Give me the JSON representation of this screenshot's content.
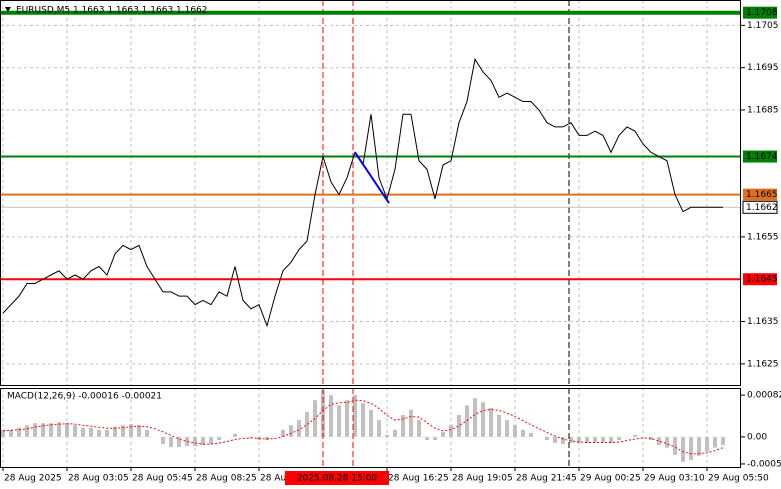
{
  "chart_data": [
    {
      "type": "line",
      "title": "EURUSD,M5  1.1663 1.1663 1.1663 1.1662",
      "x": [
        0,
        4,
        8,
        12,
        16,
        20,
        24,
        28,
        32,
        36,
        40,
        44,
        48,
        52,
        56,
        60,
        64,
        68,
        72,
        76,
        80,
        84,
        88,
        92,
        96,
        100,
        104,
        108,
        112,
        116,
        120,
        124,
        128,
        132,
        136,
        140,
        144,
        148,
        152,
        156,
        160,
        164,
        168,
        172,
        176,
        180,
        184,
        188,
        192,
        196,
        200,
        204,
        208,
        212,
        216,
        220,
        224,
        228,
        232,
        236,
        240,
        244,
        248,
        252,
        256,
        260,
        264,
        268,
        272,
        276,
        280,
        284,
        288,
        292,
        296,
        300,
        304,
        308,
        312,
        316,
        320,
        324,
        328,
        332,
        336,
        340,
        344,
        348,
        352,
        356,
        360
      ],
      "series": [
        {
          "color": "#000000",
          "values": [
            1.1637,
            1.1639,
            1.1641,
            1.1644,
            1.1644,
            1.1645,
            1.1646,
            1.1647,
            1.1645,
            1.1646,
            1.1645,
            1.1647,
            1.1648,
            1.1646,
            1.1651,
            1.1653,
            1.1652,
            1.1653,
            1.1648,
            1.1645,
            1.1642,
            1.1642,
            1.1641,
            1.1641,
            1.1639,
            1.164,
            1.1639,
            1.1642,
            1.1641,
            1.1648,
            1.164,
            1.1638,
            1.1639,
            1.1634,
            1.1641,
            1.1647,
            1.1649,
            1.1652,
            1.1654,
            1.1665,
            1.1674,
            1.1668,
            1.1665,
            1.1669,
            1.1675,
            1.1672,
            1.1684,
            1.1669,
            1.1664,
            1.1671,
            1.1684,
            1.1684,
            1.1673,
            1.1671,
            1.1664,
            1.1672,
            1.1673,
            1.1682,
            1.1687,
            1.1697,
            1.1694,
            1.1692,
            1.1688,
            1.1689,
            1.1688,
            1.1687,
            1.1687,
            1.1685,
            1.1682,
            1.1681,
            1.1681,
            1.1682,
            1.1679,
            1.1679,
            1.168,
            1.1679,
            1.1675,
            1.1679,
            1.1681,
            1.168,
            1.1677,
            1.1675,
            1.1674,
            1.1673,
            1.1665,
            1.1661,
            1.1662,
            1.1662,
            1.1662,
            1.1662,
            1.1662
          ]
        }
      ],
      "xlim": [
        -1.5,
        369
      ],
      "ylim": [
        1.162,
        1.1711
      ],
      "yticks": [
        1.1705,
        1.1695,
        1.1685,
        1.1655,
        1.1635,
        1.1625
      ],
      "grid": true,
      "levels": [
        {
          "value": 1.1708,
          "label": "1.1708",
          "color": "#008000",
          "text_color": "#ffffff"
        },
        {
          "value": 1.1674,
          "label": "1.1674",
          "color": "#008000",
          "text_color": "#ffffff"
        },
        {
          "value": 1.1665,
          "label": "1.1665",
          "color": "#e07020",
          "text_color": "#ffffff"
        },
        {
          "value": 1.1662,
          "label": "1.1662",
          "color": "#c0c0c0",
          "text_color": "#000000"
        },
        {
          "value": 1.1645,
          "label": "1.1645",
          "color": "#ff0000",
          "text_color": "#ffffff"
        }
      ],
      "vlines": [
        {
          "x": 160,
          "color": "#ff0000"
        },
        {
          "x": 175,
          "color": "#ff0000"
        },
        {
          "x": 283,
          "color": "#000000"
        }
      ],
      "trendline": {
        "x": [
          176,
          193
        ],
        "y": [
          1.1675,
          1.1663
        ],
        "color": "#0000ff"
      }
    },
    {
      "type": "combo",
      "title": "MACD(12,26,9) -0.00016 -0.00021",
      "x": [
        0,
        4,
        8,
        12,
        16,
        20,
        24,
        28,
        32,
        36,
        40,
        44,
        48,
        52,
        56,
        60,
        64,
        68,
        72,
        76,
        80,
        84,
        88,
        92,
        96,
        100,
        104,
        108,
        112,
        116,
        120,
        124,
        128,
        132,
        136,
        140,
        144,
        148,
        152,
        156,
        160,
        164,
        168,
        172,
        176,
        180,
        184,
        188,
        192,
        196,
        200,
        204,
        208,
        212,
        216,
        220,
        224,
        228,
        232,
        236,
        240,
        244,
        248,
        252,
        256,
        260,
        264,
        268,
        272,
        276,
        280,
        284,
        288,
        292,
        296,
        300,
        304,
        308,
        312,
        316,
        320,
        324,
        328,
        332,
        336,
        340,
        344,
        348,
        352,
        356,
        360
      ],
      "series": [
        {
          "type": "bar",
          "color": "#c0c0c0",
          "values": [
            0.00014,
            0.00014,
            0.00018,
            0.00023,
            0.00027,
            0.00027,
            0.00027,
            0.00029,
            0.00027,
            0.00023,
            0.00018,
            0.00018,
            0.00014,
            0.00014,
            0.0002,
            0.00023,
            0.00025,
            0.00023,
            0.00014,
            0,
            -0.00014,
            -0.0002,
            -0.0002,
            -0.00018,
            -0.00018,
            -0.00016,
            -0.00014,
            -6e-05,
            0,
            6e-05,
            0,
            -2e-05,
            -6e-05,
            -6e-05,
            0,
            0.00014,
            0.00023,
            0.00033,
            0.00049,
            0.00072,
            0.00092,
            0.00082,
            0.00062,
            0.00072,
            0.00082,
            0.00066,
            0.00053,
            0.00033,
            4e-05,
            0.00014,
            0.00043,
            0.00053,
            0.00033,
            -6e-05,
            -6e-05,
            0.0001,
            0.00023,
            0.00043,
            0.00062,
            0.00076,
            0.00068,
            0.00057,
            0.00043,
            0.00033,
            0.00023,
            0.00014,
            8e-05,
            0,
            -6e-05,
            -0.00012,
            -0.00014,
            -0.00012,
            -0.00012,
            -0.00012,
            -0.0001,
            -0.0001,
            -0.00012,
            -6e-05,
            0,
            4e-05,
            0,
            -6e-05,
            -0.00016,
            -0.00021,
            -0.00035,
            -0.00049,
            -0.00045,
            -0.00037,
            -0.00029,
            -0.00021,
            -0.00016
          ]
        },
        {
          "type": "line",
          "color": "#ff0000",
          "values": [
            0.00012,
            0.00013,
            0.00014,
            0.00016,
            0.00019,
            0.00022,
            0.00024,
            0.00025,
            0.00026,
            0.00025,
            0.00023,
            0.00021,
            0.00019,
            0.00017,
            0.00017,
            0.00018,
            0.0002,
            0.00021,
            0.0002,
            0.00016,
            0.0001,
            3e-05,
            -4e-05,
            -9e-05,
            -0.00012,
            -0.00014,
            -0.00014,
            -0.00012,
            -9e-05,
            -5e-05,
            -3e-05,
            -2e-05,
            -3e-05,
            -4e-05,
            -3e-05,
            1e-05,
            7e-05,
            0.00014,
            0.00024,
            0.00036,
            0.00052,
            0.00064,
            0.00067,
            0.00068,
            0.00072,
            0.00071,
            0.00066,
            0.00056,
            0.00042,
            0.00033,
            0.00035,
            0.0004,
            0.00039,
            0.00028,
            0.00017,
            0.00012,
            0.00014,
            0.00022,
            0.00032,
            0.00044,
            0.00052,
            0.00054,
            0.00052,
            0.00047,
            0.0004,
            0.00032,
            0.00024,
            0.00016,
            9e-05,
            2e-05,
            -4e-05,
            -8e-05,
            -0.0001,
            -0.00011,
            -0.00011,
            -0.00011,
            -0.00011,
            -0.0001,
            -7e-05,
            -4e-05,
            -2e-05,
            -3e-05,
            -8e-05,
            -0.00013,
            -0.0002,
            -0.00029,
            -0.00033,
            -0.00033,
            -0.00031,
            -0.00027,
            -0.00021
          ]
        }
      ],
      "xlim": [
        -1.5,
        369
      ],
      "ylim": [
        -0.00059,
        0.00096
      ],
      "yticks": [
        0.00082,
        {
          "value": 0,
          "label": "0.00"
        },
        -0.00053
      ],
      "xticks": [
        {
          "value": 0,
          "label": "28 Aug 2025"
        },
        {
          "value": 32,
          "label": "28 Aug 03:05"
        },
        {
          "value": 64,
          "label": "28 Aug 05:45"
        },
        {
          "value": 96,
          "label": "28 Aug 08:25"
        },
        {
          "value": 128,
          "label": "28 Aug 11:05"
        },
        {
          "value": 192,
          "label": "28 Aug 16:25"
        },
        {
          "value": 224,
          "label": "28 Aug 19:05"
        },
        {
          "value": 256,
          "label": "28 Aug 21:45"
        },
        {
          "value": 288,
          "label": "29 Aug 00:25"
        },
        {
          "value": 320,
          "label": "29 Aug 03:10"
        },
        {
          "value": 352,
          "label": "29 Aug 05:50"
        }
      ],
      "marker": {
        "x": 175,
        "label": "2025.08.28 15:00",
        "color": "#ff0000"
      }
    }
  ]
}
